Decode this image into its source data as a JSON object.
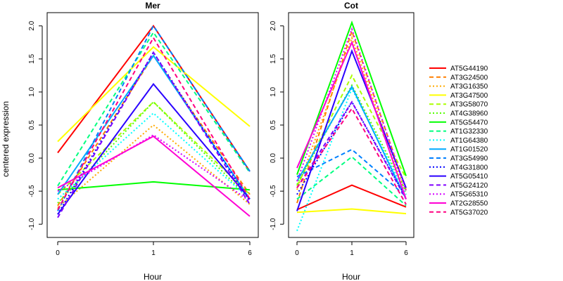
{
  "chart_data": {
    "type": "line",
    "ylabel": "centered expression",
    "xlabel": "Hour",
    "categories": [
      "0",
      "1",
      "6"
    ],
    "ylim": [
      -1.2,
      2.2
    ],
    "yticks": [
      -1.0,
      -0.5,
      0.0,
      0.5,
      1.0,
      1.5,
      2.0
    ],
    "ytick_labels": [
      "-1.0",
      "-0.5",
      "0.0",
      "0.5",
      "1.0",
      "1.5",
      "2.0"
    ],
    "grid": false,
    "legend_position": "right",
    "legend": [
      {
        "name": "AT5G44190",
        "color": "#FF0000",
        "style": "solid"
      },
      {
        "name": "AT3G24500",
        "color": "#FF7F00",
        "style": "dashed"
      },
      {
        "name": "AT3G16350",
        "color": "#FFAA00",
        "style": "dotted"
      },
      {
        "name": "AT3G47500",
        "color": "#FFFF00",
        "style": "solid"
      },
      {
        "name": "AT3G58070",
        "color": "#AAFF00",
        "style": "dashed"
      },
      {
        "name": "AT4G38960",
        "color": "#55FF00",
        "style": "dotted"
      },
      {
        "name": "AT5G54470",
        "color": "#00FF00",
        "style": "solid"
      },
      {
        "name": "AT1G32330",
        "color": "#00FF80",
        "style": "dashed"
      },
      {
        "name": "AT1G64380",
        "color": "#00FFFF",
        "style": "dotted"
      },
      {
        "name": "AT1G01520",
        "color": "#00AAFF",
        "style": "solid"
      },
      {
        "name": "AT3G54990",
        "color": "#0080FF",
        "style": "dashed"
      },
      {
        "name": "AT4G31800",
        "color": "#0000FF",
        "style": "dotted"
      },
      {
        "name": "AT5G05410",
        "color": "#2A00FF",
        "style": "solid"
      },
      {
        "name": "AT5G24120",
        "color": "#8000FF",
        "style": "dashed"
      },
      {
        "name": "AT5G65310",
        "color": "#D400FF",
        "style": "dotted"
      },
      {
        "name": "AT2G28550",
        "color": "#FF00D4",
        "style": "solid"
      },
      {
        "name": "AT5G37020",
        "color": "#FF0080",
        "style": "dashed"
      }
    ],
    "panels": [
      {
        "title": "Mer",
        "series": [
          {
            "name": "AT5G44190",
            "values": [
              0.08,
              2.0,
              -0.2
            ]
          },
          {
            "name": "AT3G24500",
            "values": [
              -0.72,
              1.55,
              -0.55
            ]
          },
          {
            "name": "AT3G16350",
            "values": [
              -0.75,
              0.5,
              -0.7
            ]
          },
          {
            "name": "AT3G47500",
            "values": [
              0.25,
              1.68,
              0.48
            ]
          },
          {
            "name": "AT3G58070",
            "values": [
              -0.55,
              0.85,
              -0.55
            ]
          },
          {
            "name": "AT4G38960",
            "values": [
              -0.68,
              0.85,
              -0.62
            ]
          },
          {
            "name": "AT5G54470",
            "values": [
              -0.48,
              -0.36,
              -0.48
            ]
          },
          {
            "name": "AT1G32330",
            "values": [
              -0.42,
              1.9,
              -0.22
            ]
          },
          {
            "name": "AT1G64380",
            "values": [
              -0.62,
              0.68,
              -0.62
            ]
          },
          {
            "name": "AT1G01520",
            "values": [
              -0.55,
              1.55,
              -0.62
            ]
          },
          {
            "name": "AT3G54990",
            "values": [
              -0.8,
              2.0,
              -0.2
            ]
          },
          {
            "name": "AT4G31800",
            "values": [
              -0.85,
              1.6,
              -0.65
            ]
          },
          {
            "name": "AT5G05410",
            "values": [
              -0.85,
              1.12,
              -0.62
            ]
          },
          {
            "name": "AT5G24120",
            "values": [
              -0.9,
              1.6,
              -0.7
            ]
          },
          {
            "name": "AT5G65310",
            "values": [
              -0.5,
              0.35,
              -0.65
            ]
          },
          {
            "name": "AT2G28550",
            "values": [
              -0.45,
              0.33,
              -0.88
            ]
          },
          {
            "name": "AT5G37020",
            "values": [
              -0.78,
              1.82,
              -0.62
            ]
          }
        ]
      },
      {
        "title": "Cot",
        "series": [
          {
            "name": "AT5G44190",
            "values": [
              -0.78,
              -0.41,
              -0.74
            ]
          },
          {
            "name": "AT3G24500",
            "values": [
              -0.68,
              1.92,
              -0.48
            ]
          },
          {
            "name": "AT3G16350",
            "values": [
              -0.48,
              1.82,
              -0.55
            ]
          },
          {
            "name": "AT3G47500",
            "values": [
              -0.82,
              -0.77,
              -0.84
            ]
          },
          {
            "name": "AT3G58070",
            "values": [
              -0.42,
              1.25,
              -0.3
            ]
          },
          {
            "name": "AT4G38960",
            "values": [
              -0.4,
              1.1,
              -0.5
            ]
          },
          {
            "name": "AT5G54470",
            "values": [
              -0.25,
              2.05,
              -0.27
            ]
          },
          {
            "name": "AT1G32330",
            "values": [
              -0.62,
              0.02,
              -0.72
            ]
          },
          {
            "name": "AT1G64380",
            "values": [
              -1.1,
              1.05,
              -0.55
            ]
          },
          {
            "name": "AT1G01520",
            "values": [
              -0.35,
              1.08,
              -0.62
            ]
          },
          {
            "name": "AT3G54990",
            "values": [
              -0.28,
              0.13,
              -0.58
            ]
          },
          {
            "name": "AT4G31800",
            "values": [
              -0.55,
              0.85,
              -0.6
            ]
          },
          {
            "name": "AT5G05410",
            "values": [
              -0.8,
              1.62,
              -0.45
            ]
          },
          {
            "name": "AT5G24120",
            "values": [
              -0.45,
              0.85,
              -0.62
            ]
          },
          {
            "name": "AT5G65310",
            "values": [
              -0.35,
              1.95,
              -0.5
            ]
          },
          {
            "name": "AT2G28550",
            "values": [
              -0.15,
              1.75,
              -0.62
            ]
          },
          {
            "name": "AT5G37020",
            "values": [
              -0.45,
              0.75,
              -0.7
            ]
          }
        ]
      }
    ]
  }
}
